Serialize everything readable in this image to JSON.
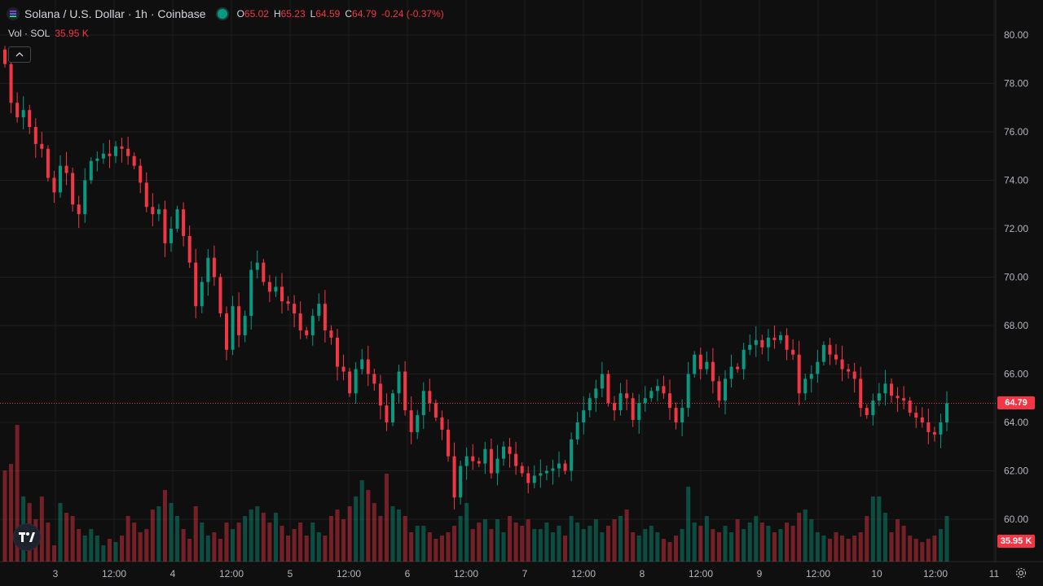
{
  "header": {
    "title": "Solana / U.S. Dollar · 1h · Coinbase",
    "ohlc": [
      {
        "key": "O",
        "value": "65.02"
      },
      {
        "key": "H",
        "value": "65.23"
      },
      {
        "key": "L",
        "value": "64.59"
      },
      {
        "key": "C",
        "value": "64.79"
      }
    ],
    "change": "-0.24 (-0.37%)"
  },
  "volume_legend": {
    "label": "Vol · SOL",
    "value": "35.95 K"
  },
  "price_badge": "64.79",
  "volume_badge": "35.95 K",
  "colors": {
    "up": "#089981",
    "down": "#f23645",
    "background": "#0f0f0f",
    "grid": "#1e1e1e"
  },
  "chart_data": {
    "type": "candlestick",
    "title": "Solana / U.S. Dollar · 1h · Coinbase",
    "ylim": [
      59,
      81
    ],
    "y_ticks": [
      "80.00",
      "78.00",
      "76.00",
      "74.00",
      "72.00",
      "70.00",
      "68.00",
      "66.00",
      "64.00",
      "62.00",
      "60.00"
    ],
    "x_ticks": [
      "3",
      "12:00",
      "4",
      "12:00",
      "5",
      "12:00",
      "6",
      "12:00",
      "7",
      "12:00",
      "8",
      "12:00",
      "9",
      "12:00",
      "10",
      "12:00",
      "11"
    ],
    "last_price": 64.79,
    "close_series": [
      78.8,
      77.2,
      76.6,
      76.9,
      76.2,
      75.5,
      75.3,
      74.1,
      73.5,
      74.6,
      74.3,
      73.0,
      72.6,
      74.0,
      74.8,
      74.9,
      75.1,
      75.0,
      75.4,
      75.3,
      75.0,
      74.6,
      73.9,
      72.9,
      72.6,
      72.8,
      71.4,
      72.0,
      72.8,
      71.7,
      70.6,
      68.8,
      69.8,
      70.8,
      70.0,
      68.5,
      67.0,
      68.8,
      67.6,
      68.4,
      70.3,
      70.6,
      69.8,
      69.4,
      69.6,
      69.0,
      68.9,
      68.5,
      67.8,
      67.6,
      68.4,
      68.9,
      67.8,
      67.5,
      66.3,
      66.1,
      65.2,
      66.2,
      66.6,
      66.0,
      65.6,
      64.7,
      64.0,
      65.2,
      66.1,
      64.5,
      63.6,
      64.3,
      65.3,
      64.8,
      64.2,
      63.7,
      62.6,
      60.9,
      62.2,
      62.6,
      62.4,
      62.3,
      62.9,
      61.9,
      62.5,
      63.0,
      62.7,
      62.2,
      61.9,
      61.5,
      61.8,
      61.9,
      62.0,
      62.1,
      62.3,
      62.0,
      63.3,
      64.0,
      64.5,
      65.0,
      65.4,
      66.0,
      64.8,
      64.5,
      65.2,
      65.0,
      64.1,
      64.8,
      65.0,
      65.3,
      65.5,
      65.2,
      64.6,
      64.0,
      64.6,
      66.0,
      66.8,
      66.2,
      66.5,
      65.7,
      64.9,
      65.8,
      66.3,
      66.2,
      67.0,
      67.2,
      67.4,
      67.1,
      67.5,
      67.4,
      67.6,
      67.0,
      66.8,
      65.2,
      65.8,
      66.0,
      66.5,
      67.2,
      66.8,
      66.6,
      66.2,
      66.1,
      65.8,
      64.6,
      64.3,
      64.9,
      65.2,
      65.6,
      65.1,
      65.0,
      64.9,
      64.4,
      64.2,
      64.0,
      63.6,
      63.5,
      64.0,
      64.79
    ],
    "volume_series": [
      28,
      30,
      42,
      20,
      18,
      13,
      20,
      12,
      5,
      18,
      15,
      14,
      10,
      8,
      10,
      8,
      5,
      7,
      6,
      8,
      14,
      12,
      9,
      10,
      16,
      17,
      22,
      18,
      14,
      10,
      7,
      17,
      12,
      8,
      9,
      7,
      12,
      10,
      12,
      14,
      16,
      17,
      15,
      12,
      15,
      11,
      8,
      10,
      12,
      8,
      12,
      9,
      8,
      14,
      16,
      13,
      17,
      20,
      25,
      22,
      18,
      14,
      27,
      17,
      16,
      14,
      9,
      11,
      11,
      9,
      7,
      8,
      9,
      11,
      14,
      18,
      10,
      12,
      13,
      10,
      13,
      9,
      14,
      12,
      11,
      13,
      10,
      10,
      12,
      9,
      11,
      8,
      14,
      12,
      10,
      11,
      13,
      9,
      11,
      13,
      14,
      16,
      9,
      8,
      10,
      11,
      9,
      7,
      6,
      8,
      10,
      23,
      12,
      11,
      14,
      10,
      9,
      11,
      9,
      13,
      10,
      12,
      14,
      12,
      11,
      9,
      10,
      12,
      11,
      15,
      16,
      13,
      9,
      8,
      7,
      9,
      8,
      7,
      8,
      9,
      14,
      20,
      20,
      15,
      9,
      13,
      11,
      8,
      7,
      6,
      7,
      8,
      10,
      14,
      20,
      11
    ]
  }
}
